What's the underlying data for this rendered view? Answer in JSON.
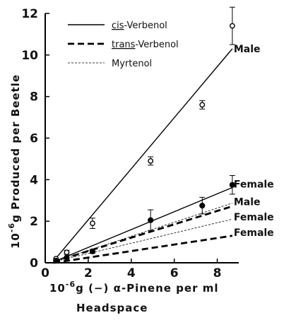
{
  "chart_data": {
    "type": "scatter",
    "xlabel_prefix": "10",
    "xlabel_exp": "-6",
    "xlabel_rest": "g  (−) α-Pinene  per  ml",
    "xlabel_line2": "Headspace",
    "ylabel_prefix": "10",
    "ylabel_exp": "-6",
    "ylabel_rest": "g  Produced  per  Beetle",
    "xlim": [
      0,
      9
    ],
    "ylim": [
      0,
      12
    ],
    "xticks": [
      0,
      2,
      4,
      6,
      8
    ],
    "yticks": [
      0,
      2,
      4,
      6,
      8,
      10,
      12
    ],
    "legend": [
      {
        "name": "cis-Verbenol",
        "underline_part": "cis",
        "rest": "-Verbenol",
        "style": "solid"
      },
      {
        "name": "trans-Verbenol",
        "underline_part": "trans",
        "rest": "-Verbenol",
        "style": "dash"
      },
      {
        "name": "Myrtenol",
        "underline_part": "",
        "rest": "Myrtenol",
        "style": "thin-dash"
      }
    ],
    "points": [
      {
        "series": "male-cis",
        "marker": "open",
        "x": [
          0.5,
          1.0,
          2.2,
          4.9,
          7.3,
          8.7
        ],
        "y": [
          0.2,
          0.5,
          1.9,
          4.9,
          7.6,
          11.4
        ],
        "err": [
          0,
          0.1,
          0.25,
          0.2,
          0.2,
          0.9
        ]
      },
      {
        "series": "female-cis",
        "marker": "filled",
        "x": [
          0.5,
          1.0,
          2.2,
          4.9,
          7.3,
          8.7
        ],
        "y": [
          0.1,
          0.25,
          0.55,
          2.05,
          2.75,
          3.75
        ],
        "err": [
          0,
          0,
          0.1,
          0.5,
          0.4,
          0.45
        ]
      }
    ],
    "lines": [
      {
        "series": "male-cis",
        "style": "solid",
        "x": [
          0.4,
          8.7
        ],
        "y": [
          0.1,
          10.3
        ],
        "label": "Male"
      },
      {
        "series": "female-cis",
        "style": "solid",
        "x": [
          0.4,
          8.7
        ],
        "y": [
          0.05,
          3.62
        ],
        "label": "Female"
      },
      {
        "series": "male-myrtenol",
        "style": "thin-dash",
        "x": [
          0.4,
          8.7
        ],
        "y": [
          0.05,
          2.87
        ],
        "label": "Male"
      },
      {
        "series": "male-trans",
        "style": "dash",
        "x": [
          0.4,
          8.7
        ],
        "y": [
          0.05,
          2.72
        ],
        "label": ""
      },
      {
        "series": "female-myrtenol",
        "style": "thin-dash",
        "x": [
          0.4,
          8.7
        ],
        "y": [
          0.05,
          2.1
        ],
        "label": "Female"
      },
      {
        "series": "female-trans",
        "style": "dash",
        "x": [
          0.4,
          8.7
        ],
        "y": [
          0.0,
          1.3
        ],
        "label": "Female"
      }
    ]
  }
}
